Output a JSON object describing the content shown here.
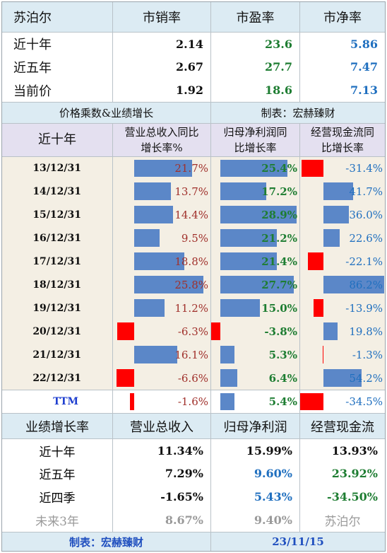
{
  "top": {
    "headers": [
      "苏泊尔",
      "市销率",
      "市盈率",
      "市净率"
    ],
    "rows": [
      {
        "label": "近十年",
        "ps": "2.14",
        "pe": "23.6",
        "pb": "5.86"
      },
      {
        "label": "近五年",
        "ps": "2.67",
        "pe": "27.7",
        "pb": "7.47"
      },
      {
        "label": "当前价",
        "ps": "1.92",
        "pe": "18.6",
        "pb": "7.13"
      }
    ]
  },
  "section": {
    "left": "价格乘数&业绩增长",
    "right": "制表：宏赫臻财"
  },
  "growth_header": {
    "label": "近十年",
    "rev": "营业总收入同比增长率%",
    "np": "归母净利润同比增长率",
    "cf": "经营现金流同比增长率"
  },
  "chart_data": {
    "type": "table",
    "rows": [
      {
        "date": "13/12/31",
        "rev": 21.7,
        "np": 25.4,
        "cf": -31.4
      },
      {
        "date": "14/12/31",
        "rev": 13.7,
        "np": 17.2,
        "cf": 41.7
      },
      {
        "date": "15/12/31",
        "rev": 14.4,
        "np": 28.9,
        "cf": 36.0
      },
      {
        "date": "16/12/31",
        "rev": 9.5,
        "np": 21.2,
        "cf": 22.6
      },
      {
        "date": "17/12/31",
        "rev": 18.8,
        "np": 21.4,
        "cf": -22.1
      },
      {
        "date": "18/12/31",
        "rev": 25.8,
        "np": 27.7,
        "cf": 86.2
      },
      {
        "date": "19/12/31",
        "rev": 11.2,
        "np": 15.0,
        "cf": -13.9
      },
      {
        "date": "20/12/31",
        "rev": -6.3,
        "np": -3.8,
        "cf": 19.8
      },
      {
        "date": "21/12/31",
        "rev": 16.1,
        "np": 5.3,
        "cf": -1.3
      },
      {
        "date": "22/12/31",
        "rev": -6.6,
        "np": 6.4,
        "cf": 54.2
      },
      {
        "date": "TTM",
        "rev": -1.6,
        "np": 5.4,
        "cf": -34.5
      }
    ],
    "display": [
      [
        "13/12/31",
        "21.7%",
        "25.4%",
        "-31.4%"
      ],
      [
        "14/12/31",
        "13.7%",
        "17.2%",
        "41.7%"
      ],
      [
        "15/12/31",
        "14.4%",
        "28.9%",
        "36.0%"
      ],
      [
        "16/12/31",
        "9.5%",
        "21.2%",
        "22.6%"
      ],
      [
        "17/12/31",
        "18.8%",
        "21.4%",
        "-22.1%"
      ],
      [
        "18/12/31",
        "25.8%",
        "27.7%",
        "86.2%"
      ],
      [
        "19/12/31",
        "11.2%",
        "15.0%",
        "-13.9%"
      ],
      [
        "20/12/31",
        "-6.3%",
        "-3.8%",
        "19.8%"
      ],
      [
        "21/12/31",
        "16.1%",
        "5.3%",
        "-1.3%"
      ],
      [
        "22/12/31",
        "-6.6%",
        "6.4%",
        "54.2%"
      ],
      [
        "TTM",
        "-1.6%",
        "5.4%",
        "-34.5%"
      ]
    ]
  },
  "summary": {
    "headers": [
      "业绩增长率",
      "营业总收入",
      "归母净利润",
      "经营现金流"
    ],
    "rows": [
      {
        "label": "近十年",
        "rev": "11.34%",
        "np": "15.99%",
        "cf": "13.93%"
      },
      {
        "label": "近五年",
        "rev": "7.29%",
        "np": "9.60%",
        "cf": "23.92%"
      },
      {
        "label": "近四季",
        "rev": "-1.65%",
        "np": "5.43%",
        "cf": "-34.50%"
      },
      {
        "label": "未来3年",
        "rev": "8.67%",
        "np": "9.40%",
        "cf": "苏泊尔"
      }
    ]
  },
  "footer": {
    "left": "制表：宏赫臻财",
    "right": "23/11/15"
  },
  "colors": {
    "positive_bar": "#5b87c8",
    "negative_bar": "#ff0000",
    "header_bg": "#dcebf3",
    "green": "#1e7d32",
    "blue": "#1f6fbf",
    "dark_red": "#a0302b"
  }
}
